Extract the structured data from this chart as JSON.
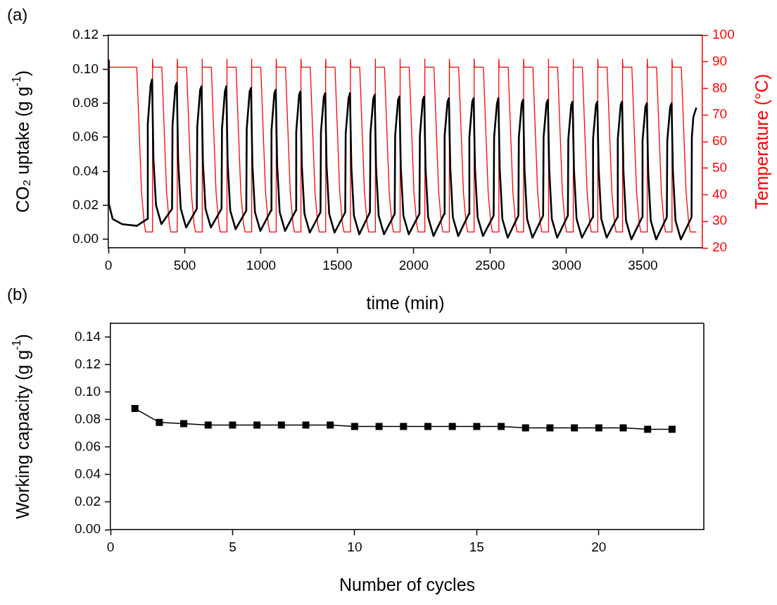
{
  "chart_data": [
    {
      "type": "line",
      "title": "(a)",
      "xlabel": "time (min)",
      "ylabel": "CO₂ uptake (g g$^{-1}$)",
      "y2label": "Temperature (°C)",
      "xlim": [
        0,
        3890
      ],
      "xticks": [
        0,
        500,
        1000,
        1500,
        2000,
        2500,
        3000,
        3500
      ],
      "ylim": [
        -0.005,
        0.12
      ],
      "yticks": [
        {
          "value": 0,
          "label": "0.00"
        },
        {
          "value": 0.02,
          "label": "0.02"
        },
        {
          "value": 0.04,
          "label": "0.04"
        },
        {
          "value": 0.06,
          "label": "0.06"
        },
        {
          "value": 0.08,
          "label": "0.08"
        },
        {
          "value": 0.1,
          "label": "0.10"
        },
        {
          "value": 0.12,
          "label": "0.12"
        }
      ],
      "y2lim": [
        20,
        100
      ],
      "y2ticks": [
        20,
        30,
        40,
        50,
        60,
        70,
        80,
        90,
        100
      ],
      "legend": false,
      "grid": false,
      "series": [
        {
          "color": "#000000",
          "x": [
            0,
            3,
            28,
            89,
            186,
            255,
            258,
            277,
            286,
            295,
            312,
            347,
            417,
            420,
            439,
            448,
            457,
            474,
            509,
            579,
            582,
            601,
            610,
            619,
            636,
            671,
            741,
            744,
            763,
            772,
            781,
            798,
            833,
            903,
            906,
            925,
            934,
            943,
            960,
            995,
            1065,
            1068,
            1087,
            1096,
            1105,
            1122,
            1157,
            1227,
            1230,
            1249,
            1258,
            1267,
            1284,
            1319,
            1389,
            1392,
            1411,
            1420,
            1429,
            1446,
            1481,
            1551,
            1554,
            1573,
            1582,
            1591,
            1608,
            1643,
            1713,
            1716,
            1735,
            1744,
            1753,
            1770,
            1805,
            1875,
            1878,
            1897,
            1906,
            1915,
            1932,
            1967,
            2037,
            2040,
            2059,
            2068,
            2077,
            2094,
            2129,
            2199,
            2202,
            2221,
            2230,
            2239,
            2256,
            2291,
            2361,
            2364,
            2383,
            2392,
            2401,
            2418,
            2453,
            2523,
            2526,
            2545,
            2554,
            2563,
            2580,
            2615,
            2685,
            2688,
            2707,
            2716,
            2725,
            2742,
            2777,
            2847,
            2850,
            2869,
            2878,
            2887,
            2904,
            2939,
            3009,
            3012,
            3031,
            3040,
            3049,
            3066,
            3101,
            3171,
            3174,
            3193,
            3202,
            3211,
            3228,
            3263,
            3333,
            3336,
            3355,
            3364,
            3373,
            3390,
            3425,
            3495,
            3498,
            3517,
            3526,
            3535,
            3552,
            3587,
            3657,
            3660,
            3679,
            3688,
            3697,
            3714,
            3749,
            3819,
            3821,
            3831,
            3849
          ],
          "values": [
            0.105,
            0.021,
            0.012,
            0.009,
            0.008,
            0.012,
            0.068,
            0.091,
            0.094,
            0.047,
            0.02,
            0.009,
            0.018,
            0.067,
            0.09,
            0.092,
            0.046,
            0.018,
            0.007,
            0.018,
            0.066,
            0.088,
            0.09,
            0.045,
            0.018,
            0.007,
            0.018,
            0.065,
            0.087,
            0.09,
            0.045,
            0.017,
            0.006,
            0.017,
            0.065,
            0.087,
            0.089,
            0.044,
            0.016,
            0.005,
            0.017,
            0.064,
            0.086,
            0.088,
            0.044,
            0.016,
            0.005,
            0.017,
            0.063,
            0.085,
            0.087,
            0.043,
            0.015,
            0.004,
            0.016,
            0.063,
            0.084,
            0.086,
            0.043,
            0.015,
            0.004,
            0.016,
            0.062,
            0.083,
            0.086,
            0.043,
            0.014,
            0.003,
            0.016,
            0.062,
            0.083,
            0.085,
            0.042,
            0.014,
            0.003,
            0.015,
            0.061,
            0.082,
            0.084,
            0.042,
            0.014,
            0.003,
            0.015,
            0.061,
            0.082,
            0.084,
            0.042,
            0.013,
            0.002,
            0.015,
            0.061,
            0.081,
            0.083,
            0.042,
            0.013,
            0.002,
            0.015,
            0.06,
            0.081,
            0.083,
            0.041,
            0.013,
            0.002,
            0.014,
            0.06,
            0.08,
            0.083,
            0.041,
            0.012,
            0.001,
            0.014,
            0.06,
            0.08,
            0.082,
            0.041,
            0.012,
            0.001,
            0.014,
            0.06,
            0.08,
            0.082,
            0.041,
            0.012,
            0.001,
            0.014,
            0.059,
            0.079,
            0.081,
            0.041,
            0.012,
            0.001,
            0.013,
            0.059,
            0.079,
            0.081,
            0.041,
            0.012,
            0.001,
            0.013,
            0.059,
            0.079,
            0.081,
            0.04,
            0.011,
            0.0,
            0.013,
            0.058,
            0.078,
            0.08,
            0.04,
            0.011,
            0.0,
            0.013,
            0.058,
            0.078,
            0.08,
            0.04,
            0.011,
            0.0,
            0.013,
            0.06,
            0.072,
            0.077
          ]
        },
        {
          "color": "#ff0000",
          "axis": "y2",
          "x": [
            0,
            3,
            186,
            217,
            235,
            245,
            289,
            289,
            292,
            350,
            381,
            399,
            409,
            451,
            451,
            454,
            512,
            543,
            561,
            571,
            613,
            613,
            616,
            674,
            705,
            723,
            733,
            775,
            775,
            778,
            836,
            867,
            885,
            895,
            937,
            937,
            940,
            998,
            1029,
            1047,
            1057,
            1099,
            1099,
            1102,
            1160,
            1191,
            1209,
            1219,
            1261,
            1261,
            1264,
            1322,
            1353,
            1371,
            1381,
            1423,
            1423,
            1426,
            1484,
            1515,
            1533,
            1543,
            1585,
            1585,
            1588,
            1646,
            1677,
            1695,
            1705,
            1747,
            1747,
            1750,
            1808,
            1839,
            1857,
            1867,
            1909,
            1909,
            1912,
            1970,
            2001,
            2019,
            2029,
            2071,
            2071,
            2074,
            2132,
            2163,
            2181,
            2191,
            2233,
            2233,
            2236,
            2294,
            2325,
            2343,
            2353,
            2395,
            2395,
            2398,
            2456,
            2487,
            2505,
            2515,
            2557,
            2557,
            2560,
            2618,
            2649,
            2667,
            2677,
            2719,
            2719,
            2722,
            2780,
            2811,
            2829,
            2839,
            2881,
            2881,
            2884,
            2942,
            2973,
            2991,
            3001,
            3043,
            3043,
            3046,
            3104,
            3135,
            3153,
            3163,
            3205,
            3205,
            3208,
            3266,
            3297,
            3315,
            3325,
            3367,
            3367,
            3370,
            3428,
            3459,
            3477,
            3487,
            3529,
            3529,
            3532,
            3590,
            3621,
            3639,
            3649,
            3691,
            3691,
            3694,
            3752,
            3783,
            3801,
            3811,
            3849
          ],
          "values": [
            91,
            88,
            88,
            41,
            29,
            26,
            26,
            91,
            88,
            88,
            41,
            29,
            26,
            26,
            91,
            88,
            88,
            41,
            29,
            26,
            26,
            91,
            88,
            88,
            41,
            29,
            26,
            26,
            91,
            88,
            88,
            41,
            29,
            26,
            26,
            91,
            88,
            88,
            41,
            29,
            26,
            26,
            91,
            88,
            88,
            41,
            29,
            26,
            26,
            91,
            88,
            88,
            41,
            29,
            26,
            26,
            91,
            88,
            88,
            41,
            29,
            26,
            26,
            91,
            88,
            88,
            41,
            29,
            26,
            26,
            91,
            88,
            88,
            41,
            29,
            26,
            26,
            91,
            88,
            88,
            41,
            29,
            26,
            26,
            91,
            88,
            88,
            41,
            29,
            26,
            26,
            91,
            88,
            88,
            41,
            29,
            26,
            26,
            91,
            88,
            88,
            41,
            29,
            26,
            26,
            91,
            88,
            88,
            41,
            29,
            26,
            26,
            91,
            88,
            88,
            41,
            29,
            26,
            26,
            91,
            88,
            88,
            41,
            29,
            26,
            26,
            91,
            88,
            88,
            41,
            29,
            26,
            26,
            91,
            88,
            88,
            41,
            29,
            26,
            26,
            91,
            88,
            88,
            41,
            29,
            26,
            26,
            91,
            88,
            88,
            41,
            29,
            26,
            26,
            91,
            88,
            88,
            41,
            29,
            26,
            26
          ]
        }
      ]
    },
    {
      "type": "line",
      "title": "(b)",
      "xlabel": "Number of cycles",
      "ylabel": "Working capacity (g g$^{-1}$)",
      "marker": "square",
      "line_style": "solid",
      "legend": false,
      "grid": false,
      "xlim": [
        0,
        24.3
      ],
      "xticks": [
        0,
        5,
        10,
        15,
        20
      ],
      "ylim": [
        0,
        0.15
      ],
      "yticks": [
        {
          "value": 0,
          "label": "0.00"
        },
        {
          "value": 0.02,
          "label": "0.02"
        },
        {
          "value": 0.04,
          "label": "0.04"
        },
        {
          "value": 0.06,
          "label": "0.06"
        },
        {
          "value": 0.08,
          "label": "0.08"
        },
        {
          "value": 0.1,
          "label": "0.10"
        },
        {
          "value": 0.12,
          "label": "0.12"
        },
        {
          "value": 0.14,
          "label": "0.14"
        }
      ],
      "x": [
        1,
        2,
        3,
        4,
        5,
        6,
        7,
        8,
        9,
        10,
        11,
        12,
        13,
        14,
        15,
        16,
        17,
        18,
        19,
        20,
        21,
        22,
        23
      ],
      "series": [
        {
          "color": "#000000",
          "values": [
            0.088,
            0.078,
            0.077,
            0.076,
            0.076,
            0.076,
            0.076,
            0.076,
            0.076,
            0.075,
            0.075,
            0.075,
            0.075,
            0.075,
            0.075,
            0.075,
            0.074,
            0.074,
            0.074,
            0.074,
            0.074,
            0.073,
            0.073
          ]
        }
      ]
    }
  ]
}
